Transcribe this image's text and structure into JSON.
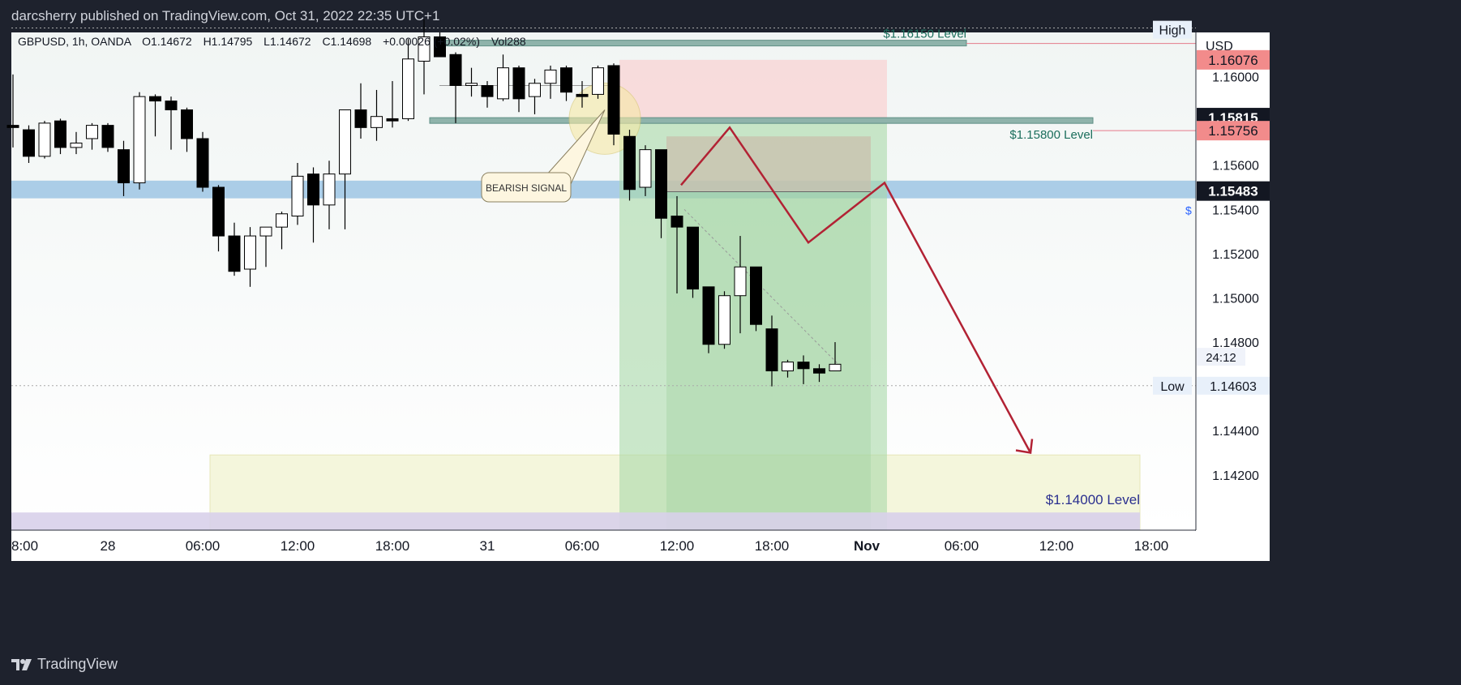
{
  "header": {
    "publisher": "darcsherry published on TradingView.com, Oct 31, 2022 22:35 UTC+1"
  },
  "footer": {
    "brand": "TradingView"
  },
  "colors": {
    "bull": "#ffffff",
    "bear": "#000000",
    "sell_zone": "#f8d7d7",
    "profit_zone": "#a8d8a8",
    "support_band": "#9ec5e4",
    "arrow": "#b22234",
    "target_zone": "#f4f6dc",
    "purple_band": "#d8d0ea",
    "level_line": "#e57a8a"
  },
  "chart_data": {
    "type": "candlestick",
    "title": "GBPUSD, 1h, OANDA",
    "symbol_info": {
      "label": "GBPUSD, 1h, OANDA",
      "open": "O1.14672",
      "high": "H1.14795",
      "low": "L1.14672",
      "close": "C1.14698",
      "change": "+0.00026 (+0.02%)",
      "volume": "Vol288"
    },
    "currency": "USD",
    "ylim": [
      1.1405,
      1.1626
    ],
    "y_ticks": [
      1.16,
      1.158,
      1.156,
      1.154,
      1.152,
      1.15,
      1.148,
      1.146,
      1.144,
      1.142
    ],
    "y_tick_labels": [
      "1.16000",
      "1.15800",
      "1.15600",
      "1.15400",
      "1.15200",
      "1.15000",
      "1.14800",
      "1.14600",
      "1.14400",
      "1.14200"
    ],
    "x_ticks": [
      {
        "i": 0,
        "label": "8:00"
      },
      {
        "i": 6,
        "label": "28"
      },
      {
        "i": 12,
        "label": "06:00"
      },
      {
        "i": 18,
        "label": "12:00"
      },
      {
        "i": 24,
        "label": "18:00"
      },
      {
        "i": 30,
        "label": "31"
      },
      {
        "i": 36,
        "label": "06:00"
      },
      {
        "i": 42,
        "label": "12:00"
      },
      {
        "i": 48,
        "label": "18:00"
      },
      {
        "i": 54,
        "label": "Nov"
      },
      {
        "i": 60,
        "label": "06:00"
      },
      {
        "i": 66,
        "label": "12:00"
      },
      {
        "i": 72,
        "label": "18:00"
      }
    ],
    "candles": [
      {
        "o": 1.1578,
        "h": 1.1601,
        "l": 1.1568,
        "c": 1.1577
      },
      {
        "o": 1.1576,
        "h": 1.1578,
        "l": 1.1561,
        "c": 1.1564
      },
      {
        "o": 1.1564,
        "h": 1.158,
        "l": 1.1563,
        "c": 1.1579
      },
      {
        "o": 1.158,
        "h": 1.1581,
        "l": 1.1565,
        "c": 1.1568
      },
      {
        "o": 1.1568,
        "h": 1.1575,
        "l": 1.1565,
        "c": 1.157
      },
      {
        "o": 1.1572,
        "h": 1.1579,
        "l": 1.1567,
        "c": 1.1578
      },
      {
        "o": 1.1578,
        "h": 1.1579,
        "l": 1.1566,
        "c": 1.1568
      },
      {
        "o": 1.1567,
        "h": 1.1571,
        "l": 1.1546,
        "c": 1.1552
      },
      {
        "o": 1.1552,
        "h": 1.1593,
        "l": 1.1549,
        "c": 1.1591
      },
      {
        "o": 1.1591,
        "h": 1.1592,
        "l": 1.1573,
        "c": 1.1589
      },
      {
        "o": 1.1589,
        "h": 1.1591,
        "l": 1.1567,
        "c": 1.1585
      },
      {
        "o": 1.1585,
        "h": 1.1586,
        "l": 1.1566,
        "c": 1.1572
      },
      {
        "o": 1.1572,
        "h": 1.1575,
        "l": 1.1548,
        "c": 1.155
      },
      {
        "o": 1.155,
        "h": 1.1551,
        "l": 1.1521,
        "c": 1.1528
      },
      {
        "o": 1.1528,
        "h": 1.1534,
        "l": 1.151,
        "c": 1.1512
      },
      {
        "o": 1.1513,
        "h": 1.1532,
        "l": 1.1505,
        "c": 1.1528
      },
      {
        "o": 1.1528,
        "h": 1.1532,
        "l": 1.1514,
        "c": 1.1532
      },
      {
        "o": 1.1532,
        "h": 1.1539,
        "l": 1.1522,
        "c": 1.1538
      },
      {
        "o": 1.1537,
        "h": 1.1561,
        "l": 1.1533,
        "c": 1.1555
      },
      {
        "o": 1.1556,
        "h": 1.1559,
        "l": 1.1525,
        "c": 1.1542
      },
      {
        "o": 1.1542,
        "h": 1.1562,
        "l": 1.1531,
        "c": 1.1556
      },
      {
        "o": 1.1556,
        "h": 1.1585,
        "l": 1.1531,
        "c": 1.1585
      },
      {
        "o": 1.1585,
        "h": 1.1597,
        "l": 1.1572,
        "c": 1.1577
      },
      {
        "o": 1.1577,
        "h": 1.1594,
        "l": 1.1571,
        "c": 1.1582
      },
      {
        "o": 1.1581,
        "h": 1.1598,
        "l": 1.1577,
        "c": 1.158
      },
      {
        "o": 1.1581,
        "h": 1.1617,
        "l": 1.158,
        "c": 1.1608
      },
      {
        "o": 1.1607,
        "h": 1.1626,
        "l": 1.1592,
        "c": 1.1618
      },
      {
        "o": 1.1618,
        "h": 1.162,
        "l": 1.1609,
        "c": 1.1609
      },
      {
        "o": 1.161,
        "h": 1.1611,
        "l": 1.1579,
        "c": 1.1596
      },
      {
        "o": 1.1596,
        "h": 1.1604,
        "l": 1.1591,
        "c": 1.1597
      },
      {
        "o": 1.1596,
        "h": 1.1598,
        "l": 1.1586,
        "c": 1.1591
      },
      {
        "o": 1.159,
        "h": 1.161,
        "l": 1.1589,
        "c": 1.1604
      },
      {
        "o": 1.1604,
        "h": 1.1605,
        "l": 1.1584,
        "c": 1.159
      },
      {
        "o": 1.1591,
        "h": 1.1599,
        "l": 1.1583,
        "c": 1.1597
      },
      {
        "o": 1.1597,
        "h": 1.1605,
        "l": 1.159,
        "c": 1.1603
      },
      {
        "o": 1.1604,
        "h": 1.1605,
        "l": 1.1589,
        "c": 1.1593
      },
      {
        "o": 1.1592,
        "h": 1.1598,
        "l": 1.1586,
        "c": 1.1591
      },
      {
        "o": 1.1592,
        "h": 1.1605,
        "l": 1.159,
        "c": 1.1604
      },
      {
        "o": 1.1605,
        "h": 1.1606,
        "l": 1.1569,
        "c": 1.1574
      },
      {
        "o": 1.1573,
        "h": 1.1576,
        "l": 1.1544,
        "c": 1.1549
      },
      {
        "o": 1.155,
        "h": 1.1569,
        "l": 1.1546,
        "c": 1.1567
      },
      {
        "o": 1.1567,
        "h": 1.1567,
        "l": 1.1527,
        "c": 1.1536
      },
      {
        "o": 1.1537,
        "h": 1.1546,
        "l": 1.1502,
        "c": 1.1532
      },
      {
        "o": 1.1532,
        "h": 1.1532,
        "l": 1.15,
        "c": 1.1504
      },
      {
        "o": 1.1505,
        "h": 1.1505,
        "l": 1.1475,
        "c": 1.1479
      },
      {
        "o": 1.1479,
        "h": 1.1503,
        "l": 1.1477,
        "c": 1.1501
      },
      {
        "o": 1.1501,
        "h": 1.1528,
        "l": 1.1484,
        "c": 1.1514
      },
      {
        "o": 1.1514,
        "h": 1.1514,
        "l": 1.1485,
        "c": 1.1488
      },
      {
        "o": 1.1486,
        "h": 1.1492,
        "l": 1.146,
        "c": 1.1467
      },
      {
        "o": 1.1467,
        "h": 1.1472,
        "l": 1.1464,
        "c": 1.1471
      },
      {
        "o": 1.1471,
        "h": 1.1474,
        "l": 1.1461,
        "c": 1.1468
      },
      {
        "o": 1.1468,
        "h": 1.147,
        "l": 1.1462,
        "c": 1.1466
      },
      {
        "o": 1.1467,
        "h": 1.148,
        "l": 1.1467,
        "c": 1.147
      }
    ],
    "price_labels": {
      "high": "High",
      "low": "Low",
      "countdown": "24:12",
      "p1": "1.16076",
      "p2": "1.15815",
      "p3": "1.15756",
      "p4": "1.15483",
      "p5": "1.14603"
    },
    "price_values": {
      "p1": 1.16076,
      "p2": 1.15815,
      "p3": 1.15756,
      "p4": 1.15483,
      "p5": 1.14603
    },
    "levels": [
      {
        "price": 1.1615,
        "label": "$1.16150 Level"
      },
      {
        "price": 1.158,
        "label": "$1.15800 Level"
      },
      {
        "price": 1.14,
        "label": "$1.14000 Level"
      }
    ],
    "annotations": {
      "signal": "BEARISH SIGNAL",
      "right_axis_partial": "$"
    }
  }
}
